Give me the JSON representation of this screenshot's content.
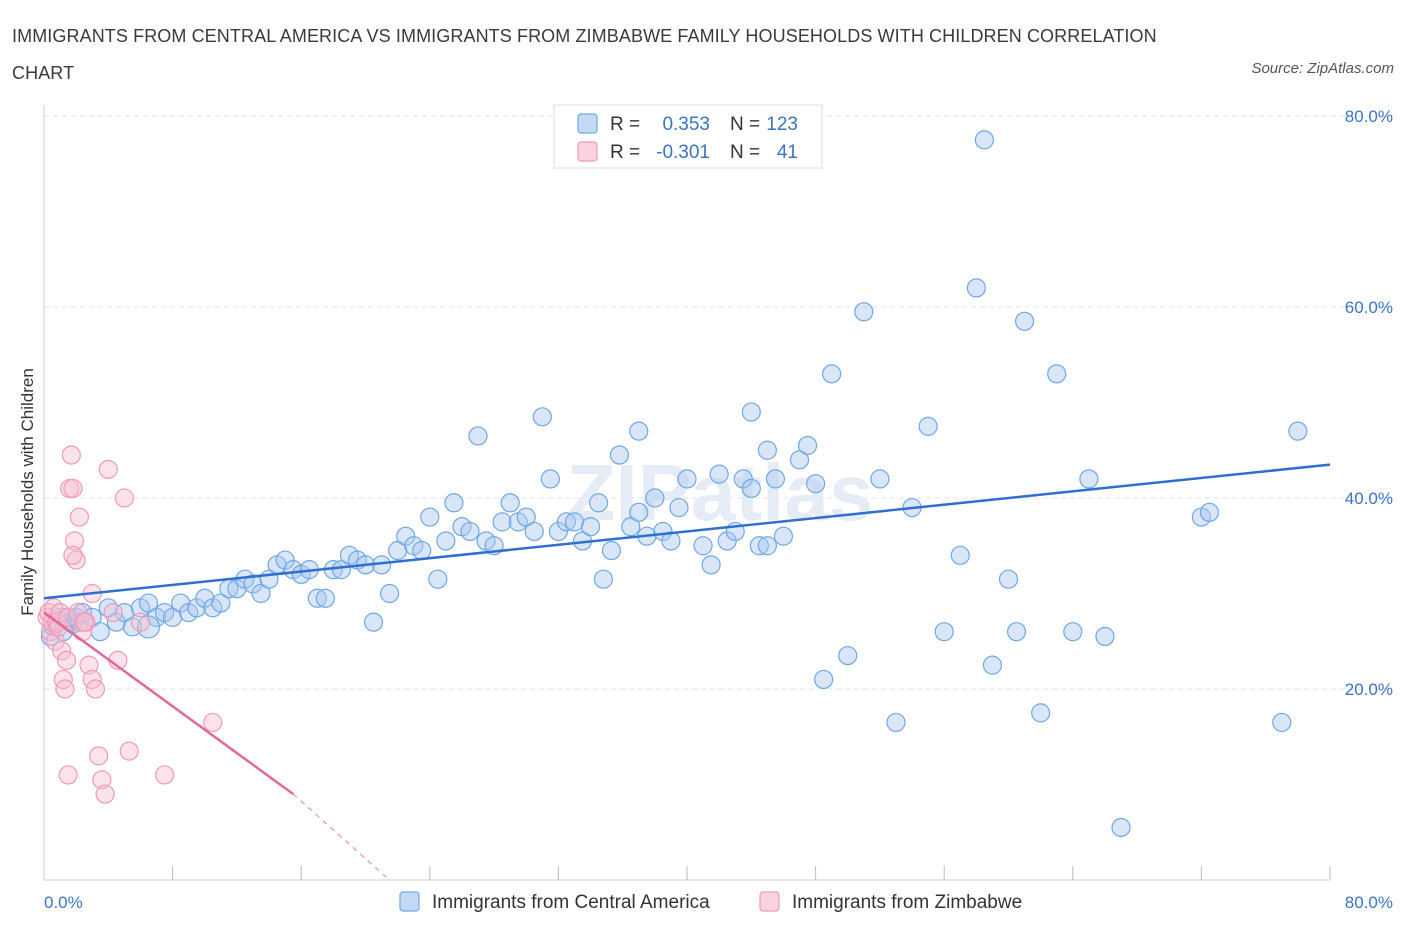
{
  "title": "IMMIGRANTS FROM CENTRAL AMERICA VS IMMIGRANTS FROM ZIMBABWE FAMILY HOUSEHOLDS WITH CHILDREN CORRELATION CHART",
  "source": "Source: ZipAtlas.com",
  "watermark": "ZIPatlas",
  "colors": {
    "blue": "#6fa8e8",
    "blue_line": "#2f6fd0",
    "pink": "#f09ab6",
    "pink_line": "#e0689a",
    "accent_text": "#3b74c6"
  },
  "legend": {
    "rows": [
      {
        "r_label": "R =",
        "r_value": "0.353",
        "n_label": "N =",
        "n_value": "123"
      },
      {
        "r_label": "R =",
        "r_value": "-0.301",
        "n_label": "N =",
        "n_value": "41"
      }
    ]
  },
  "chart_data": {
    "type": "scatter",
    "ylabel": "Family Households with Children",
    "xlabel": "",
    "xlim": [
      0,
      80
    ],
    "ylim": [
      0,
      80
    ],
    "x_tick_labels": [
      "0.0%",
      "80.0%"
    ],
    "y_ticks": [
      20,
      40,
      60,
      80
    ],
    "y_tick_labels": [
      "20.0%",
      "40.0%",
      "60.0%",
      "80.0%"
    ],
    "series": [
      {
        "name": "Immigrants from Central America",
        "color": "#6fa8e8",
        "trend": {
          "x": [
            0,
            80
          ],
          "y": [
            29.5,
            43.5
          ]
        },
        "points": [
          [
            0.4,
            25.5
          ],
          [
            0.6,
            26.5
          ],
          [
            0.8,
            27
          ],
          [
            1,
            27.5
          ],
          [
            1.2,
            26
          ],
          [
            1.4,
            27.5
          ],
          [
            1.6,
            27
          ],
          [
            1.8,
            26.8
          ],
          [
            2,
            27.5
          ],
          [
            2.2,
            27
          ],
          [
            2.4,
            28
          ],
          [
            3,
            27.5
          ],
          [
            3.5,
            26
          ],
          [
            4,
            28.5
          ],
          [
            4.5,
            27
          ],
          [
            5,
            28
          ],
          [
            5.5,
            26.5
          ],
          [
            6,
            28.5
          ],
          [
            6.5,
            29
          ],
          [
            7,
            27.5
          ],
          [
            7.5,
            28
          ],
          [
            8,
            27.5
          ],
          [
            8.5,
            29
          ],
          [
            9,
            28
          ],
          [
            9.5,
            28.5
          ],
          [
            10,
            29.5
          ],
          [
            10.5,
            28.5
          ],
          [
            11,
            29
          ],
          [
            11.5,
            30.5
          ],
          [
            12,
            30.5
          ],
          [
            12.5,
            31.5
          ],
          [
            13,
            31
          ],
          [
            13.5,
            30
          ],
          [
            14,
            31.5
          ],
          [
            14.5,
            33
          ],
          [
            15,
            33.5
          ],
          [
            15.5,
            32.5
          ],
          [
            16,
            32
          ],
          [
            16.5,
            32.5
          ],
          [
            17,
            29.5
          ],
          [
            17.5,
            29.5
          ],
          [
            18,
            32.5
          ],
          [
            18.5,
            32.5
          ],
          [
            19,
            34
          ],
          [
            19.5,
            33.5
          ],
          [
            20,
            33
          ],
          [
            20.5,
            27
          ],
          [
            21,
            33
          ],
          [
            21.5,
            30
          ],
          [
            22,
            34.5
          ],
          [
            22.5,
            36
          ],
          [
            23,
            35
          ],
          [
            23.5,
            34.5
          ],
          [
            24,
            38
          ],
          [
            24.5,
            31.5
          ],
          [
            25,
            35.5
          ],
          [
            25.5,
            39.5
          ],
          [
            26,
            37
          ],
          [
            26.5,
            36.5
          ],
          [
            27,
            46.5
          ],
          [
            27.5,
            35.5
          ],
          [
            28,
            35
          ],
          [
            28.5,
            37.5
          ],
          [
            29,
            39.5
          ],
          [
            29.5,
            37.5
          ],
          [
            30,
            38
          ],
          [
            30.5,
            36.5
          ],
          [
            31,
            48.5
          ],
          [
            31.5,
            42
          ],
          [
            32,
            36.5
          ],
          [
            32.5,
            37.5
          ],
          [
            33,
            37.5
          ],
          [
            33.5,
            35.5
          ],
          [
            34,
            37
          ],
          [
            34.5,
            39.5
          ],
          [
            34.8,
            31.5
          ],
          [
            35.3,
            34.5
          ],
          [
            35.8,
            44.5
          ],
          [
            36.5,
            37
          ],
          [
            37,
            38.5
          ],
          [
            37.5,
            36
          ],
          [
            38,
            40
          ],
          [
            38.5,
            36.5
          ],
          [
            39,
            35.5
          ],
          [
            39.5,
            39
          ],
          [
            40,
            42
          ],
          [
            41,
            35
          ],
          [
            41.5,
            33
          ],
          [
            42,
            42.5
          ],
          [
            42.5,
            35.5
          ],
          [
            43,
            36.5
          ],
          [
            43.5,
            42
          ],
          [
            44,
            41
          ],
          [
            44.5,
            35
          ],
          [
            45,
            45
          ],
          [
            45.5,
            42
          ],
          [
            46,
            36
          ],
          [
            47,
            44
          ],
          [
            47.5,
            45.5
          ],
          [
            48,
            41.5
          ],
          [
            49,
            53
          ],
          [
            50,
            23.5
          ],
          [
            51,
            59.5
          ],
          [
            52,
            42
          ],
          [
            53,
            16.5
          ],
          [
            54,
            39
          ],
          [
            55,
            47.5
          ],
          [
            56,
            26
          ],
          [
            57,
            34
          ],
          [
            58,
            62
          ],
          [
            59,
            22.5
          ],
          [
            60,
            31.5
          ],
          [
            61,
            58.5
          ],
          [
            62,
            17.5
          ],
          [
            63,
            53
          ],
          [
            64,
            26
          ],
          [
            65,
            42
          ],
          [
            66,
            25.5
          ],
          [
            67,
            5.5
          ],
          [
            58.5,
            77.5
          ],
          [
            72,
            38
          ],
          [
            72.5,
            38.5
          ],
          [
            77,
            16.5
          ],
          [
            78,
            47
          ],
          [
            48.5,
            21
          ],
          [
            45,
            35
          ],
          [
            37,
            47
          ],
          [
            60.5,
            26
          ],
          [
            44,
            49
          ]
        ]
      },
      {
        "name": "Immigrants from Zimbabwe",
        "color": "#f09ab6",
        "trend": {
          "x": [
            0,
            15.5
          ],
          "y": [
            28,
            9.0
          ]
        },
        "trend_dashed": {
          "x": [
            15.5,
            21.5
          ],
          "y": [
            9.0,
            0
          ]
        },
        "points": [
          [
            0.2,
            27.5
          ],
          [
            0.3,
            28
          ],
          [
            0.4,
            26
          ],
          [
            0.5,
            27
          ],
          [
            0.6,
            28.5
          ],
          [
            0.7,
            25
          ],
          [
            0.8,
            27
          ],
          [
            0.9,
            26.5
          ],
          [
            1,
            28
          ],
          [
            1.1,
            24
          ],
          [
            1.2,
            21
          ],
          [
            1.3,
            20
          ],
          [
            1.4,
            23
          ],
          [
            1.5,
            27.5
          ],
          [
            1.6,
            41
          ],
          [
            1.7,
            44.5
          ],
          [
            1.8,
            41
          ],
          [
            1.9,
            35.5
          ],
          [
            2,
            33.5
          ],
          [
            2.1,
            28
          ],
          [
            2.2,
            38
          ],
          [
            2.4,
            26
          ],
          [
            2.6,
            27
          ],
          [
            2.8,
            22.5
          ],
          [
            3,
            21
          ],
          [
            3.2,
            20
          ],
          [
            3.4,
            13
          ],
          [
            3.6,
            10.5
          ],
          [
            3.8,
            9
          ],
          [
            4,
            43
          ],
          [
            4.3,
            28
          ],
          [
            4.6,
            23
          ],
          [
            5,
            40
          ],
          [
            5.3,
            13.5
          ],
          [
            6,
            27
          ],
          [
            7.5,
            11
          ],
          [
            10.5,
            16.5
          ],
          [
            1.5,
            11
          ],
          [
            1.8,
            34
          ],
          [
            2.5,
            27
          ],
          [
            3,
            30
          ]
        ]
      }
    ]
  },
  "bottom_legend": [
    {
      "label": "Immigrants from Central America"
    },
    {
      "label": "Immigrants from Zimbabwe"
    }
  ]
}
